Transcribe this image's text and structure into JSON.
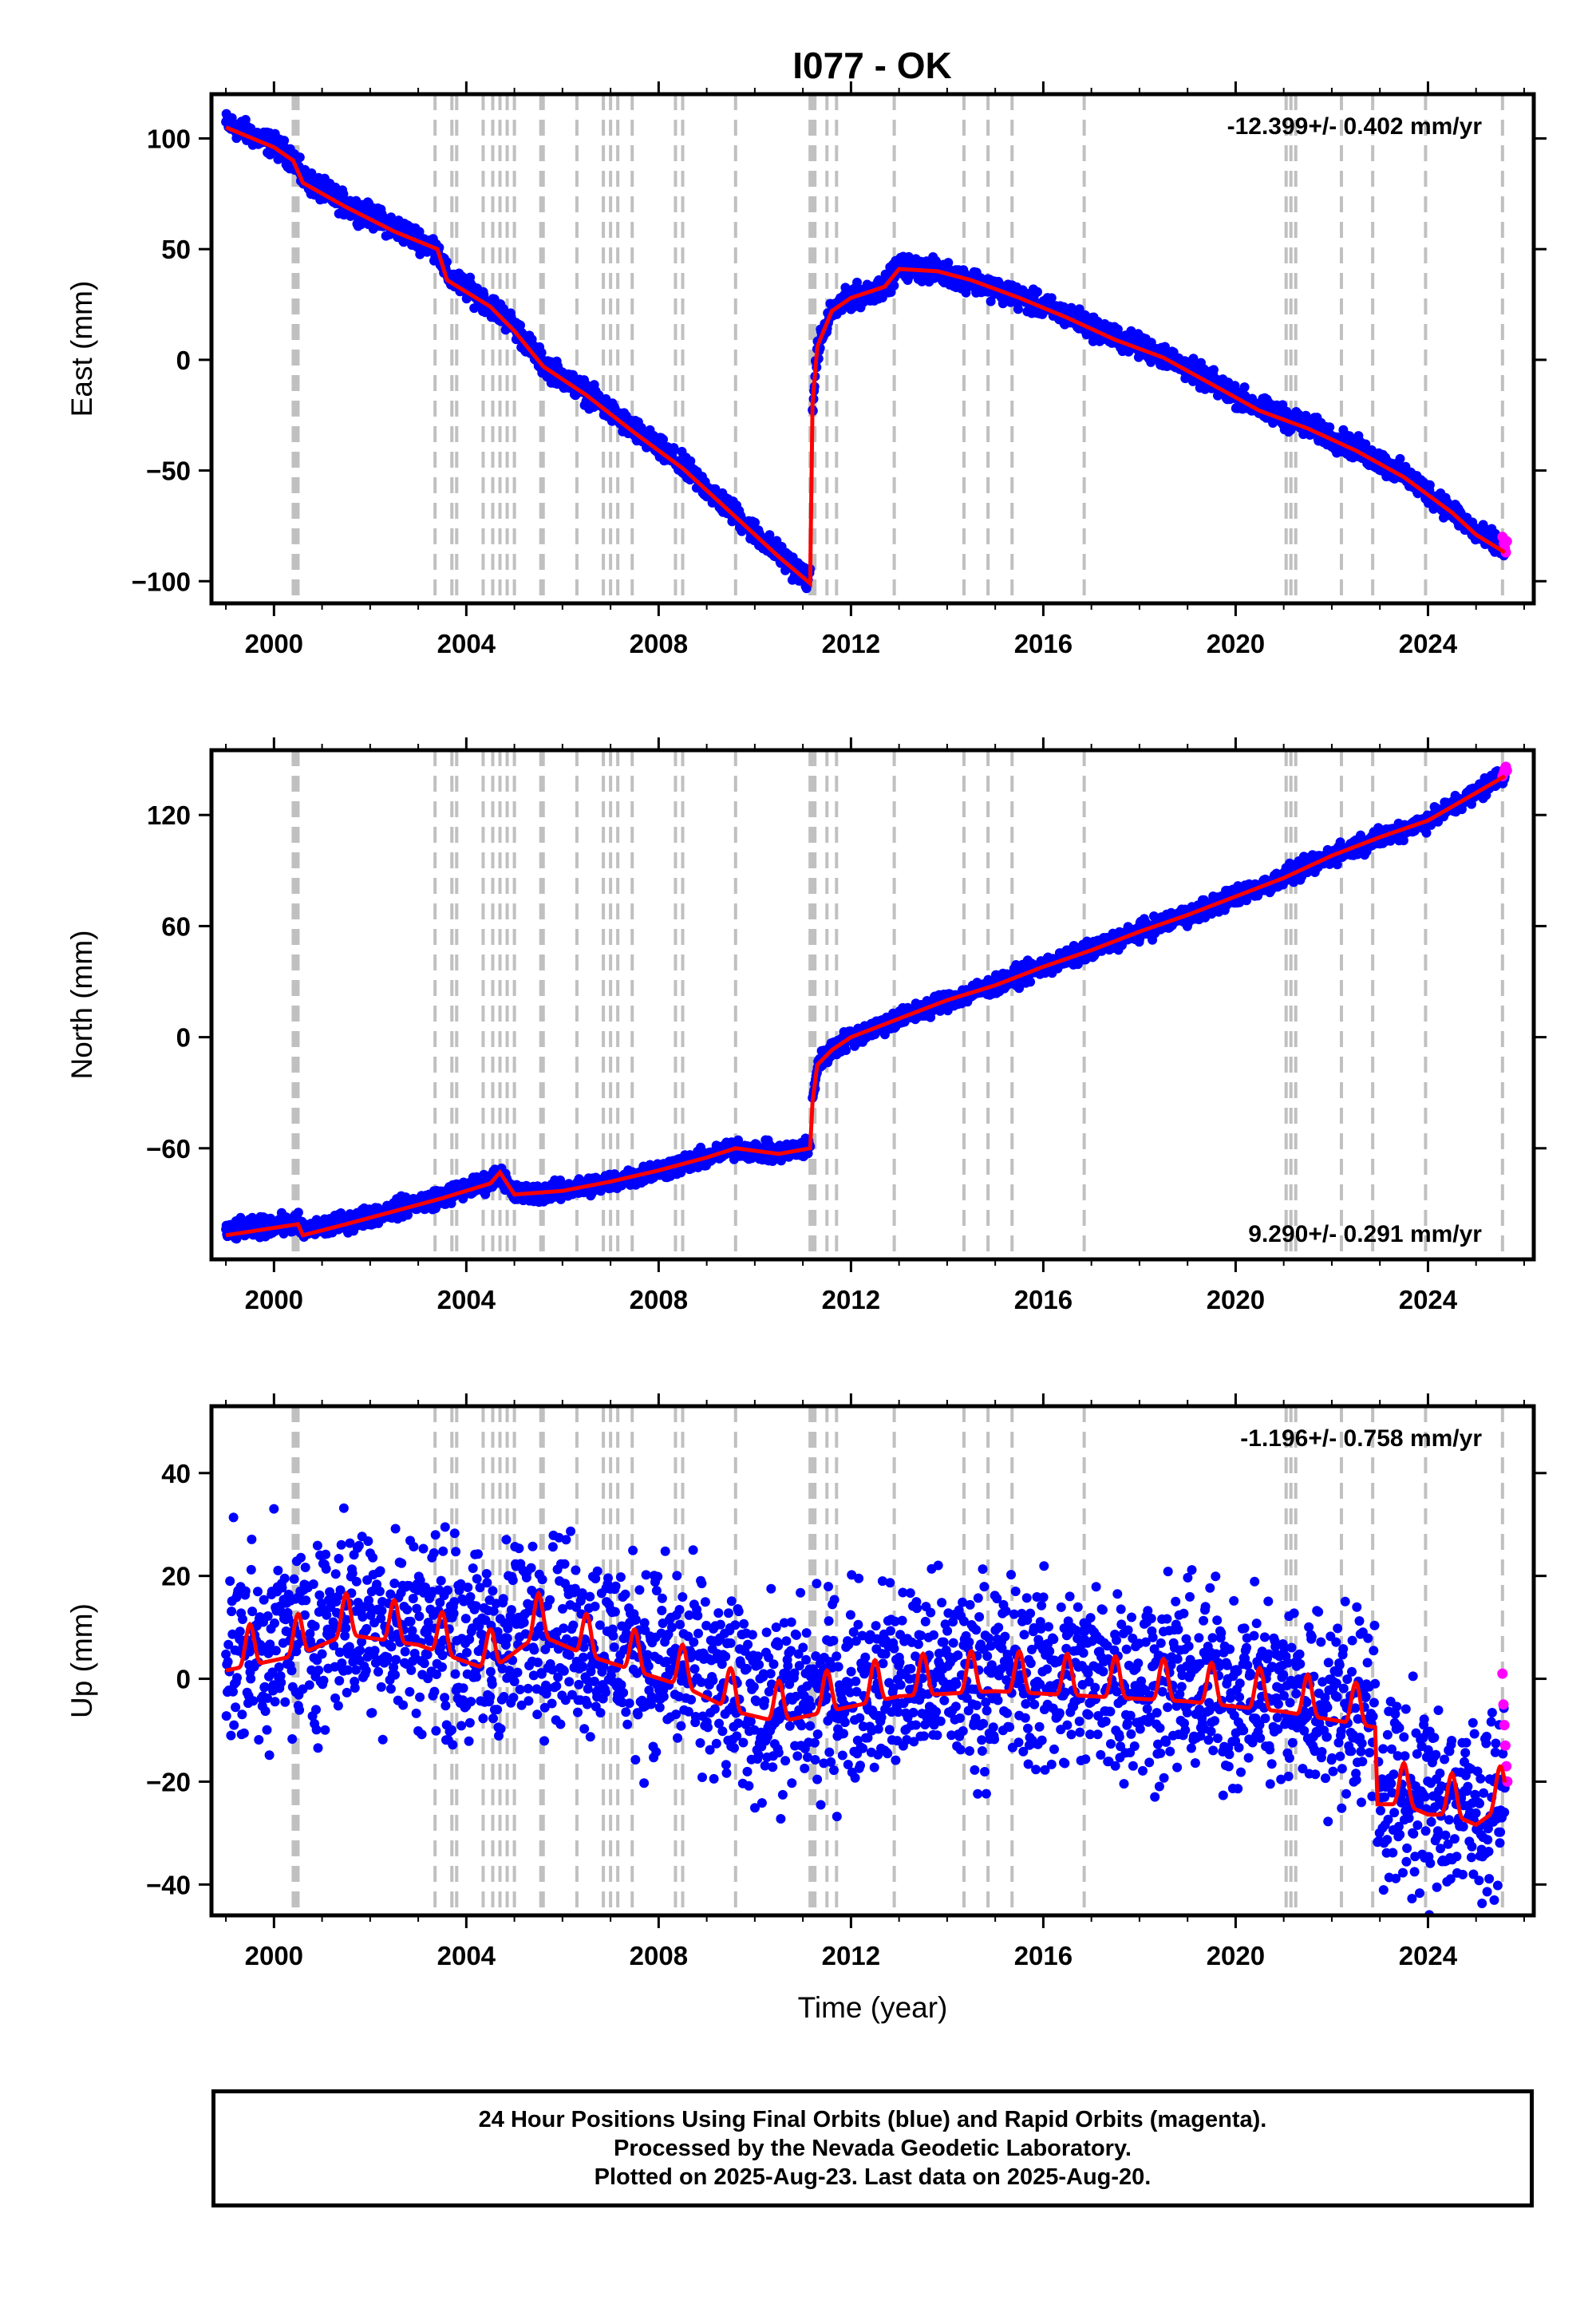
{
  "title": "I077 - OK",
  "footer": {
    "line1": "24 Hour Positions Using Final Orbits (blue) and Rapid Orbits (magenta).",
    "line2": "Processed by the Nevada Geodetic Laboratory.",
    "line3": "Plotted on 2025-Aug-23. Last data on 2025-Aug-20."
  },
  "colors": {
    "final_orbits": "#0000ff",
    "rapid_orbits": "#ff00ff",
    "model_fit": "#ff0000",
    "event_lines": "#c0c0c0"
  },
  "chart_data": [
    {
      "type": "scatter",
      "panel": "east",
      "ylabel": "East (mm)",
      "xlabel": "",
      "rate_label": "-12.399+/- 0.402 mm/yr",
      "rate_position": "top-right",
      "xlim": [
        1998.7,
        2026.2
      ],
      "ylim": [
        -110,
        120
      ],
      "xticks": [
        "2000",
        "2004",
        "2008",
        "2012",
        "2016",
        "2020",
        "2024"
      ],
      "yticks": [
        "100",
        "50",
        "0",
        "−50",
        "−100"
      ],
      "ytick_values": [
        100,
        50,
        0,
        -50,
        -100
      ],
      "noise_amp": 2.5,
      "series": [
        {
          "name": "Final Orbits (blue)",
          "role": "data",
          "x": [
            1999.0,
            2000.0,
            2000.4,
            2000.6,
            2001.5,
            2002.5,
            2003.4,
            2003.6,
            2004.5,
            2005.0,
            2005.6,
            2006.5,
            2007.5,
            2008.5,
            2009.6,
            2010.5,
            2011.15
          ],
          "y": [
            107,
            97,
            91,
            82,
            70,
            60,
            50,
            38,
            25,
            15,
            -2,
            -15,
            -32,
            -48,
            -70,
            -88,
            -100
          ]
        },
        {
          "name": "Final Orbits (blue)",
          "role": "data",
          "x": [
            2011.2,
            2011.3,
            2011.6,
            2012.0,
            2012.7,
            2013.0,
            2013.8,
            2014.5,
            2015.5,
            2016.5,
            2017.5,
            2018.5,
            2019.5,
            2020.5,
            2021.5,
            2022.5,
            2023.5,
            2024.5,
            2025.0,
            2025.6
          ],
          "y": [
            -22,
            5,
            22,
            28,
            33,
            42,
            40,
            36,
            28,
            20,
            10,
            2,
            -10,
            -22,
            -30,
            -40,
            -52,
            -68,
            -78,
            -86
          ]
        },
        {
          "name": "Rapid Orbits (magenta)",
          "role": "rapid",
          "x": [
            2025.55,
            2025.58,
            2025.6,
            2025.62,
            2025.64
          ],
          "y": [
            -80,
            -83,
            -85,
            -87,
            -82
          ]
        },
        {
          "name": "Model fit",
          "role": "fit",
          "x": [
            1999.0,
            2000.0,
            2000.4,
            2000.6,
            2001.5,
            2002.5,
            2003.4,
            2003.6,
            2004.5,
            2005.0,
            2005.6,
            2006.5,
            2007.5,
            2008.5,
            2009.6,
            2010.5,
            2011.15,
            2011.2,
            2011.3,
            2011.6,
            2012.0,
            2012.7,
            2013.0,
            2013.8,
            2014.5,
            2015.5,
            2016.5,
            2017.5,
            2018.5,
            2019.5,
            2020.5,
            2021.5,
            2022.5,
            2023.5,
            2024.5,
            2025.0,
            2025.6
          ],
          "y": [
            105,
            96,
            90,
            80,
            69,
            58,
            50,
            36,
            24,
            13,
            -3,
            -16,
            -33,
            -49,
            -71,
            -89,
            -101,
            -20,
            6,
            22,
            28,
            33,
            41,
            40,
            36,
            28,
            19,
            9,
            1,
            -11,
            -23,
            -31,
            -41,
            -53,
            -69,
            -79,
            -87
          ]
        }
      ]
    },
    {
      "type": "scatter",
      "panel": "north",
      "ylabel": "North (mm)",
      "xlabel": "",
      "rate_label": "9.290+/- 0.291 mm/yr",
      "rate_position": "bottom-right",
      "xlim": [
        1998.7,
        2026.2
      ],
      "ylim": [
        -120,
        155
      ],
      "xticks": [
        "2000",
        "2004",
        "2008",
        "2012",
        "2016",
        "2020",
        "2024"
      ],
      "yticks": [
        "120",
        "60",
        "0",
        "−60"
      ],
      "ytick_values": [
        120,
        60,
        0,
        -60
      ],
      "noise_amp": 2.5,
      "series": [
        {
          "name": "Final Orbits (blue)",
          "role": "data",
          "x": [
            1999.0,
            2000.5,
            2000.6,
            2001.5,
            2002.5,
            2003.5,
            2004.5,
            2004.7,
            2005.0,
            2006.0,
            2007.0,
            2008.0,
            2009.0,
            2009.6,
            2010.5,
            2011.15
          ],
          "y": [
            -105,
            -100,
            -105,
            -100,
            -93,
            -86,
            -78,
            -73,
            -85,
            -83,
            -78,
            -72,
            -65,
            -60,
            -63,
            -59
          ]
        },
        {
          "name": "Final Orbits (blue)",
          "role": "data",
          "x": [
            2011.2,
            2011.3,
            2011.6,
            2012.0,
            2013.0,
            2014.0,
            2015.0,
            2016.0,
            2017.0,
            2018.0,
            2019.0,
            2020.0,
            2021.0,
            2022.0,
            2023.0,
            2024.0,
            2025.0,
            2025.6
          ],
          "y": [
            -35,
            -15,
            -7,
            0,
            10,
            20,
            28,
            38,
            47,
            57,
            66,
            76,
            86,
            98,
            108,
            117,
            132,
            142
          ]
        },
        {
          "name": "Rapid Orbits (magenta)",
          "role": "rapid",
          "x": [
            2025.55,
            2025.58,
            2025.6,
            2025.62,
            2025.64
          ],
          "y": [
            141,
            143,
            145,
            146,
            144
          ]
        },
        {
          "name": "Model fit",
          "role": "fit",
          "x": [
            1999.0,
            2000.5,
            2000.6,
            2001.5,
            2002.5,
            2003.5,
            2004.5,
            2004.7,
            2005.0,
            2006.0,
            2007.0,
            2008.0,
            2009.0,
            2009.6,
            2010.5,
            2011.15,
            2011.2,
            2011.3,
            2011.6,
            2012.0,
            2013.0,
            2014.0,
            2015.0,
            2016.0,
            2017.0,
            2018.0,
            2019.0,
            2020.0,
            2021.0,
            2022.0,
            2023.0,
            2024.0,
            2025.0,
            2025.6
          ],
          "y": [
            -107,
            -101,
            -107,
            -101,
            -94,
            -87,
            -79,
            -73,
            -85,
            -83,
            -78,
            -72,
            -65,
            -60,
            -63,
            -60,
            -35,
            -15,
            -7,
            0,
            10,
            20,
            28,
            38,
            47,
            57,
            66,
            76,
            86,
            98,
            108,
            117,
            132,
            141
          ]
        }
      ]
    },
    {
      "type": "scatter",
      "panel": "up",
      "ylabel": "Up (mm)",
      "xlabel": "Time (year)",
      "rate_label": "-1.196+/- 0.758 mm/yr",
      "rate_position": "top-right",
      "xlim": [
        1998.7,
        2026.2
      ],
      "ylim": [
        -46,
        53
      ],
      "xticks": [
        "2000",
        "2004",
        "2008",
        "2012",
        "2016",
        "2020",
        "2024"
      ],
      "yticks": [
        "40",
        "20",
        "0",
        "−20",
        "−40"
      ],
      "ytick_values": [
        40,
        20,
        0,
        -20,
        -40
      ],
      "noise_amp": 9,
      "series": [
        {
          "name": "Final Orbits (blue)",
          "role": "data",
          "x": [
            1999.0,
            2000.5,
            2001.5,
            2003.0,
            2004.5,
            2005.5,
            2006.5,
            2007.5,
            2008.5,
            2009.6,
            2010.5,
            2011.5,
            2013.0,
            2015.0,
            2017.0,
            2019.0,
            2021.0,
            2022.9
          ],
          "y": [
            5,
            8,
            12,
            10,
            5,
            12,
            8,
            5,
            2,
            -3,
            -5,
            -3,
            0,
            1,
            0,
            -1,
            -3,
            -6
          ]
        },
        {
          "name": "Final Orbits (blue)",
          "role": "data",
          "x": [
            2022.95,
            2023.5,
            2024.0,
            2024.5,
            2025.0,
            2025.6
          ],
          "y": [
            -22,
            -22,
            -24,
            -24,
            -26,
            -22
          ]
        },
        {
          "name": "Rapid Orbits (magenta)",
          "role": "rapid",
          "x": [
            2025.55,
            2025.57,
            2025.59,
            2025.61,
            2025.63,
            2025.65
          ],
          "y": [
            1,
            -5,
            -9,
            -13,
            -17,
            -20
          ]
        },
        {
          "name": "Model fit",
          "role": "fit",
          "x": [
            1999.0,
            2000.5,
            2001.5,
            2003.0,
            2004.5,
            2005.5,
            2006.5,
            2007.5,
            2008.5,
            2009.6,
            2010.5,
            2011.5,
            2013.0,
            2015.0,
            2017.0,
            2019.0,
            2021.0,
            2022.9,
            2022.95,
            2023.5,
            2024.0,
            2024.5,
            2025.0,
            2025.6
          ],
          "y": [
            4,
            7,
            11,
            9,
            4,
            11,
            7,
            4,
            1,
            -4,
            -6,
            -4,
            -1,
            0,
            -1,
            -2,
            -4,
            -7,
            -22,
            -22,
            -24,
            -24,
            -26,
            -22
          ],
          "seasonal_amp": 8
        }
      ]
    }
  ],
  "event_lines_years": [
    2000.4,
    2000.45,
    2000.5,
    2003.35,
    2003.7,
    2003.8,
    2004.35,
    2004.55,
    2004.7,
    2004.85,
    2005.0,
    2005.55,
    2005.6,
    2006.3,
    2006.85,
    2007.0,
    2007.15,
    2007.45,
    2008.35,
    2008.5,
    2009.6,
    2011.15,
    2011.2,
    2011.25,
    2011.5,
    2011.7,
    2012.9,
    2014.35,
    2014.85,
    2015.35,
    2016.85,
    2021.05,
    2021.15,
    2021.25,
    2022.2,
    2022.85,
    2023.95,
    2025.55
  ]
}
